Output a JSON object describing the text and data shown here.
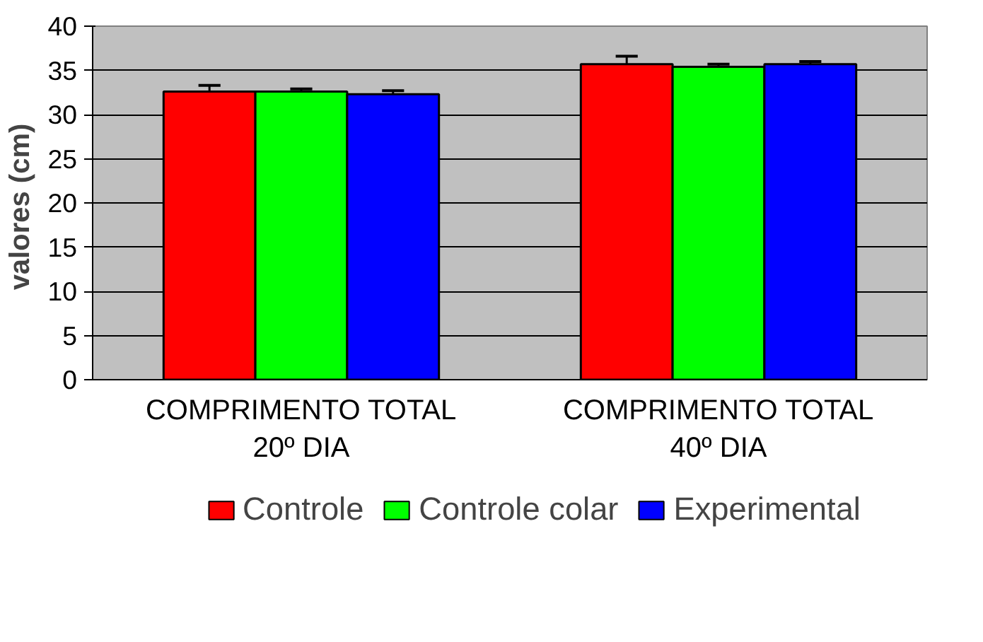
{
  "chart_data": {
    "type": "bar",
    "ylabel": "valores  (cm)",
    "categories": [
      "COMPRIMENTO TOTAL\n20º DIA",
      "COMPRIMENTO TOTAL\n40º DIA"
    ],
    "series": [
      {
        "name": "Controle",
        "color": "#ff0000",
        "values": [
          32.6,
          35.7
        ],
        "errors": [
          [
            32.6,
            33.3
          ],
          [
            35.7,
            36.6
          ]
        ]
      },
      {
        "name": "Controle colar",
        "color": "#00ff00",
        "values": [
          32.6,
          35.4
        ],
        "errors": [
          [
            32.6,
            32.9
          ],
          [
            35.4,
            35.7
          ]
        ]
      },
      {
        "name": "Experimental",
        "color": "#0000ff",
        "values": [
          32.3,
          35.7
        ],
        "errors": [
          [
            32.3,
            32.7
          ],
          [
            35.7,
            36.0
          ]
        ]
      }
    ],
    "ylim": [
      0,
      40
    ],
    "yticks": [
      0,
      5,
      10,
      15,
      20,
      25,
      30,
      35,
      40
    ],
    "grid": "y",
    "legend": "bottom"
  }
}
